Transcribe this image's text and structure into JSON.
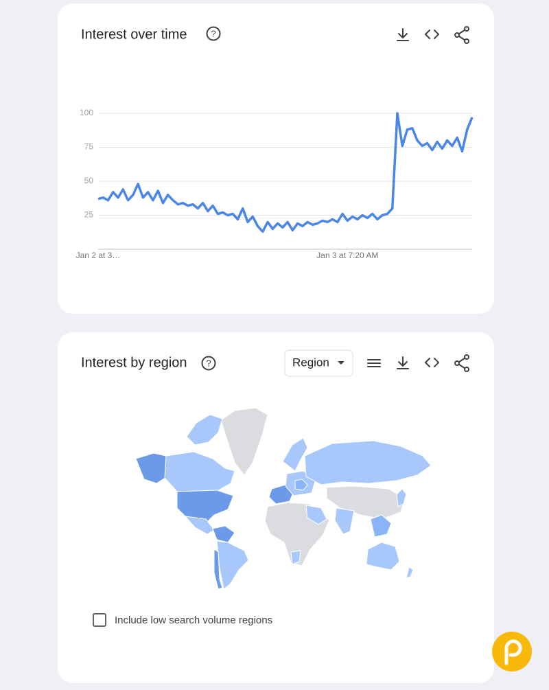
{
  "chart_data": {
    "type": "line",
    "title": "Interest over time",
    "categories": [
      "Jan 2 at 3…",
      null,
      null,
      null,
      null,
      null,
      null,
      null,
      null,
      null,
      null,
      null,
      null,
      null,
      null,
      null,
      null,
      null,
      null,
      null,
      null,
      null,
      null,
      null,
      null,
      null,
      null,
      null,
      null,
      null,
      null,
      null,
      null,
      null,
      null,
      null,
      null,
      null,
      null,
      null,
      null,
      null,
      null,
      null,
      null,
      null,
      null,
      null,
      null,
      null,
      "Jan 3 at 7:20 AM",
      null,
      null,
      null,
      null,
      null,
      null,
      null,
      null,
      null,
      null,
      null,
      null,
      null,
      null,
      null,
      null,
      null,
      null,
      null,
      null,
      null,
      null,
      null,
      null,
      null
    ],
    "values": [
      37,
      38,
      36,
      42,
      38,
      44,
      36,
      40,
      48,
      38,
      42,
      36,
      43,
      34,
      40,
      36,
      33,
      34,
      32,
      33,
      30,
      34,
      28,
      32,
      26,
      27,
      25,
      26,
      22,
      30,
      20,
      24,
      17,
      13,
      20,
      15,
      19,
      16,
      20,
      14,
      19,
      17,
      20,
      18,
      19,
      21,
      20,
      22,
      20,
      26,
      21,
      24,
      22,
      25,
      23,
      26,
      22,
      25,
      26,
      30,
      100,
      76,
      88,
      89,
      80,
      76,
      78,
      73,
      79,
      74,
      80,
      76,
      82,
      72,
      88,
      97
    ],
    "color": "#4a86e8",
    "ylim": [
      0,
      100
    ],
    "yticks": [
      25,
      50,
      75,
      100
    ],
    "grid": true
  },
  "region": {
    "title": "Interest by region",
    "dropdown": "Region",
    "checkbox_label": "Include low search volume regions"
  }
}
